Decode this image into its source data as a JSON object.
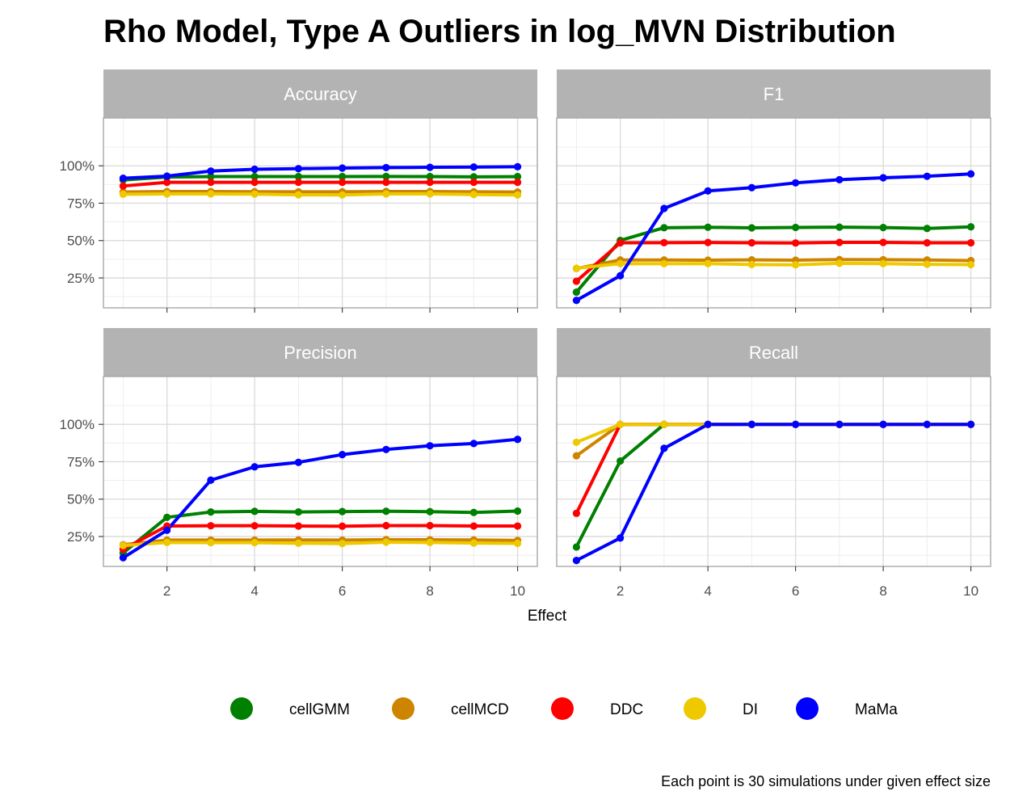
{
  "chart_data": {
    "type": "line",
    "title": "Rho Model, Type A Outliers in log_MVN Distribution",
    "xlabel": "Effect",
    "ylabel": "",
    "caption": "Each point is 30 simulations under given effect size",
    "x": [
      1,
      2,
      3,
      4,
      5,
      6,
      7,
      8,
      9,
      10
    ],
    "x_ticks": [
      2,
      4,
      6,
      8,
      10
    ],
    "xlim": [
      0.55,
      10.45
    ],
    "ylim": [
      5,
      132
    ],
    "y_ticks": [
      25,
      50,
      75,
      100
    ],
    "y_tick_labels": [
      "25%",
      "50%",
      "75%",
      "100%"
    ],
    "grid": true,
    "legend_position": "bottom",
    "series_colors": {
      "cellGMM": "#008000",
      "cellMCD": "#cd8500",
      "DDC": "#ff0000",
      "DI": "#eec900",
      "MaMa": "#0000ff"
    },
    "legend": [
      "cellGMM",
      "cellMCD",
      "DDC",
      "DI",
      "MaMa"
    ],
    "panels": [
      {
        "name": "Accuracy",
        "series": [
          {
            "name": "cellGMM",
            "values": [
              90.5,
              92.5,
              92.8,
              92.8,
              92.8,
              92.8,
              92.9,
              92.8,
              92.6,
              92.8
            ]
          },
          {
            "name": "cellMCD",
            "values": [
              82.5,
              82.8,
              82.8,
              82.7,
              82.6,
              82.6,
              82.8,
              82.8,
              82.6,
              82.5
            ]
          },
          {
            "name": "DDC",
            "values": [
              86.5,
              89.0,
              89.0,
              89.0,
              89.0,
              89.0,
              89.0,
              89.0,
              89.0,
              89.0
            ]
          },
          {
            "name": "DI",
            "values": [
              81.0,
              81.2,
              81.2,
              81.1,
              80.6,
              80.5,
              81.2,
              81.2,
              80.8,
              80.5
            ]
          },
          {
            "name": "MaMa",
            "values": [
              91.7,
              93.1,
              96.5,
              97.7,
              98.1,
              98.5,
              98.8,
              99.0,
              99.2,
              99.4
            ]
          }
        ]
      },
      {
        "name": "F1",
        "series": [
          {
            "name": "cellGMM",
            "values": [
              15.5,
              50.1,
              58.6,
              58.9,
              58.5,
              58.8,
              59.0,
              58.7,
              58.1,
              59.2
            ]
          },
          {
            "name": "cellMCD",
            "values": [
              31.3,
              37.0,
              37.0,
              36.9,
              37.1,
              36.9,
              37.3,
              37.2,
              37.0,
              36.6
            ]
          },
          {
            "name": "DDC",
            "values": [
              22.8,
              48.5,
              48.6,
              48.7,
              48.5,
              48.4,
              48.8,
              48.8,
              48.5,
              48.5
            ]
          },
          {
            "name": "DI",
            "values": [
              31.5,
              34.6,
              34.5,
              34.6,
              34.0,
              33.8,
              34.8,
              34.6,
              34.1,
              33.9
            ]
          },
          {
            "name": "MaMa",
            "values": [
              10.0,
              26.5,
              71.5,
              83.2,
              85.4,
              88.6,
              90.7,
              92.0,
              93.0,
              94.6
            ]
          }
        ]
      },
      {
        "name": "Precision",
        "series": [
          {
            "name": "cellGMM",
            "values": [
              14.0,
              37.8,
              41.4,
              41.8,
              41.4,
              41.7,
              41.9,
              41.6,
              41.1,
              42.0
            ]
          },
          {
            "name": "cellMCD",
            "values": [
              19.5,
              22.6,
              22.6,
              22.6,
              22.7,
              22.6,
              22.9,
              22.8,
              22.7,
              22.4
            ]
          },
          {
            "name": "DDC",
            "values": [
              16.5,
              32.0,
              32.2,
              32.2,
              32.0,
              31.9,
              32.3,
              32.3,
              32.0,
              32.0
            ]
          },
          {
            "name": "DI",
            "values": [
              19.0,
              21.0,
              20.9,
              20.9,
              20.5,
              20.3,
              21.2,
              21.0,
              20.6,
              20.4
            ]
          },
          {
            "name": "MaMa",
            "values": [
              10.8,
              29.2,
              62.7,
              71.6,
              74.6,
              79.8,
              83.2,
              85.7,
              87.2,
              90.0
            ]
          }
        ]
      },
      {
        "name": "Recall",
        "series": [
          {
            "name": "cellGMM",
            "values": [
              18.0,
              75.5,
              100,
              100,
              100,
              100,
              100,
              100,
              100,
              100
            ]
          },
          {
            "name": "cellMCD",
            "values": [
              79.0,
              100,
              100,
              100,
              100,
              100,
              100,
              100,
              100,
              100
            ]
          },
          {
            "name": "DDC",
            "values": [
              40.5,
              100,
              100,
              100,
              100,
              100,
              100,
              100,
              100,
              100
            ]
          },
          {
            "name": "DI",
            "values": [
              88.0,
              100,
              100,
              100,
              100,
              100,
              100,
              100,
              100,
              100
            ]
          },
          {
            "name": "MaMa",
            "values": [
              9.0,
              24.0,
              84.0,
              100,
              100,
              100,
              100,
              100,
              100,
              100
            ]
          }
        ]
      }
    ]
  }
}
